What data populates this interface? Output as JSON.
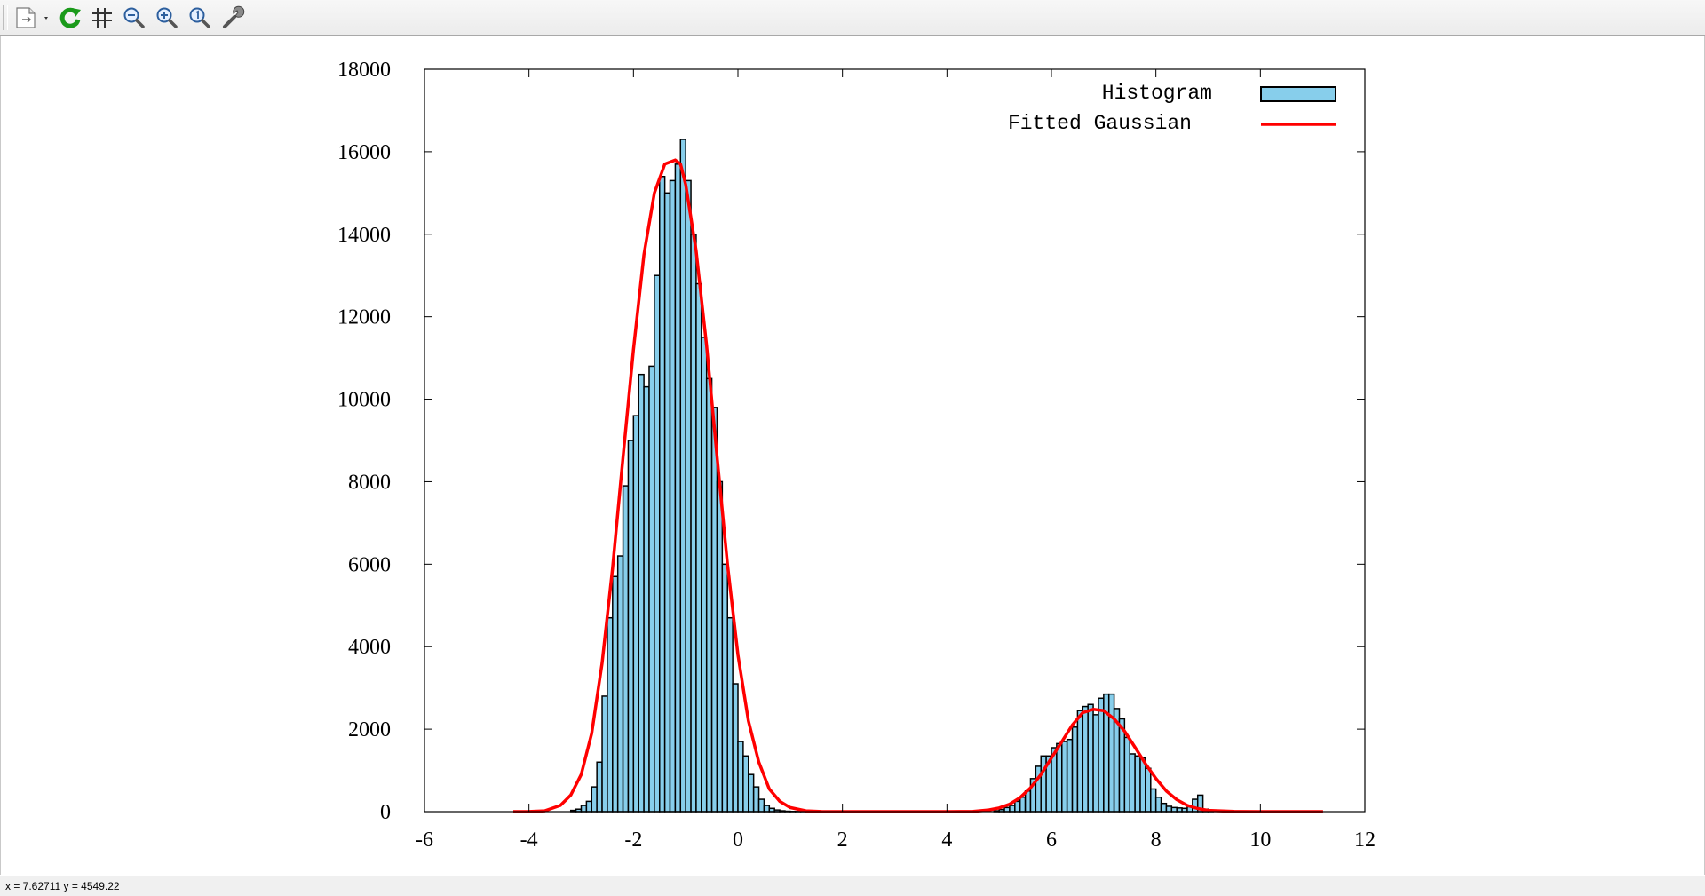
{
  "toolbar": {
    "buttons": [
      {
        "icon": "export-icon"
      },
      {
        "icon": "replot-icon"
      },
      {
        "icon": "grid-icon"
      },
      {
        "icon": "zoom-out-icon"
      },
      {
        "icon": "zoom-in-icon"
      },
      {
        "icon": "zoom-reset-icon"
      },
      {
        "icon": "options-wrench-icon"
      }
    ]
  },
  "status": {
    "coords": "x = 7.62711 y = 4549.22"
  },
  "colors": {
    "bar_fill": "#87ceeb",
    "bar_stroke": "#000000",
    "curve": "#ff0000"
  },
  "chart_data": {
    "type": "bar",
    "subtype": "histogram_with_fitted_curve",
    "title": "",
    "xlabel": "",
    "ylabel": "",
    "xlim": [
      -6,
      12
    ],
    "ylim": [
      0,
      18000
    ],
    "x_ticks": [
      -6,
      -4,
      -2,
      0,
      2,
      4,
      6,
      8,
      10,
      12
    ],
    "x_tick_labels": [
      "-6",
      "-4",
      "-2",
      "0",
      "2",
      "4",
      "6",
      "8",
      "10",
      "12"
    ],
    "y_ticks": [
      0,
      2000,
      4000,
      6000,
      8000,
      10000,
      12000,
      14000,
      16000,
      18000
    ],
    "y_tick_labels": [
      "0",
      "2000",
      "4000",
      "6000",
      "8000",
      "10000",
      "12000",
      "14000",
      "16000",
      "18000"
    ],
    "grid": false,
    "legend": {
      "position": "top-right",
      "entries": [
        "Histogram",
        "Fitted Gaussian"
      ]
    },
    "series": [
      {
        "name": "Histogram",
        "kind": "histogram",
        "bin_width": 0.1,
        "x": [
          -3.15,
          -3.05,
          -2.95,
          -2.85,
          -2.75,
          -2.65,
          -2.55,
          -2.45,
          -2.35,
          -2.25,
          -2.15,
          -2.05,
          -1.95,
          -1.85,
          -1.75,
          -1.65,
          -1.55,
          -1.45,
          -1.35,
          -1.25,
          -1.15,
          -1.05,
          -0.95,
          -0.85,
          -0.75,
          -0.65,
          -0.55,
          -0.45,
          -0.35,
          -0.25,
          -0.15,
          -0.05,
          0.05,
          0.15,
          0.25,
          0.35,
          0.45,
          0.55,
          0.65,
          0.75,
          0.85,
          0.95,
          1.05,
          1.15,
          1.25,
          1.35,
          4.95,
          5.05,
          5.15,
          5.25,
          5.35,
          5.45,
          5.55,
          5.65,
          5.75,
          5.85,
          5.95,
          6.05,
          6.15,
          6.25,
          6.35,
          6.45,
          6.55,
          6.65,
          6.75,
          6.85,
          6.95,
          7.05,
          7.15,
          7.25,
          7.35,
          7.45,
          7.55,
          7.65,
          7.75,
          7.85,
          7.95,
          8.05,
          8.15,
          8.25,
          8.35,
          8.45,
          8.55,
          8.65,
          8.75,
          8.85,
          8.95,
          9.05
        ],
        "values": [
          30,
          60,
          150,
          250,
          600,
          1200,
          2800,
          4700,
          5700,
          6200,
          7900,
          9000,
          9600,
          10600,
          10300,
          10800,
          13000,
          15400,
          15000,
          15300,
          15700,
          16300,
          15300,
          14000,
          12800,
          11500,
          10500,
          9800,
          8000,
          6000,
          4700,
          3100,
          1700,
          1350,
          900,
          600,
          300,
          150,
          80,
          40,
          20,
          10,
          5,
          3,
          2,
          1,
          20,
          50,
          100,
          150,
          250,
          350,
          500,
          800,
          1100,
          1350,
          1350,
          1550,
          1650,
          1700,
          1750,
          2050,
          2450,
          2550,
          2600,
          2350,
          2750,
          2850,
          2850,
          2500,
          2250,
          1800,
          1400,
          1350,
          1300,
          1050,
          550,
          350,
          200,
          130,
          100,
          90,
          80,
          120,
          300,
          400,
          60,
          10
        ]
      },
      {
        "name": "Fitted Gaussian",
        "kind": "line",
        "x": [
          -4.3,
          -4.0,
          -3.7,
          -3.4,
          -3.2,
          -3.0,
          -2.8,
          -2.6,
          -2.4,
          -2.2,
          -2.0,
          -1.8,
          -1.6,
          -1.4,
          -1.2,
          -1.1,
          -1.0,
          -0.8,
          -0.6,
          -0.4,
          -0.2,
          0.0,
          0.2,
          0.4,
          0.6,
          0.8,
          1.0,
          1.3,
          1.6,
          2.0,
          3.0,
          4.0,
          4.5,
          4.8,
          5.0,
          5.2,
          5.4,
          5.6,
          5.8,
          6.0,
          6.2,
          6.4,
          6.6,
          6.8,
          7.0,
          7.2,
          7.4,
          7.6,
          7.8,
          8.0,
          8.2,
          8.4,
          8.6,
          8.8,
          9.0,
          9.5,
          10.0,
          11.2
        ],
        "values": [
          0,
          3,
          20,
          150,
          400,
          900,
          1900,
          3600,
          5900,
          8600,
          11200,
          13500,
          15000,
          15700,
          15800,
          15700,
          15200,
          13600,
          11300,
          8600,
          6000,
          3800,
          2200,
          1200,
          550,
          250,
          100,
          20,
          3,
          0,
          0,
          0,
          5,
          40,
          90,
          180,
          340,
          580,
          900,
          1300,
          1700,
          2100,
          2400,
          2480,
          2450,
          2250,
          1950,
          1560,
          1160,
          800,
          500,
          290,
          150,
          75,
          30,
          4,
          0,
          0
        ]
      }
    ]
  }
}
